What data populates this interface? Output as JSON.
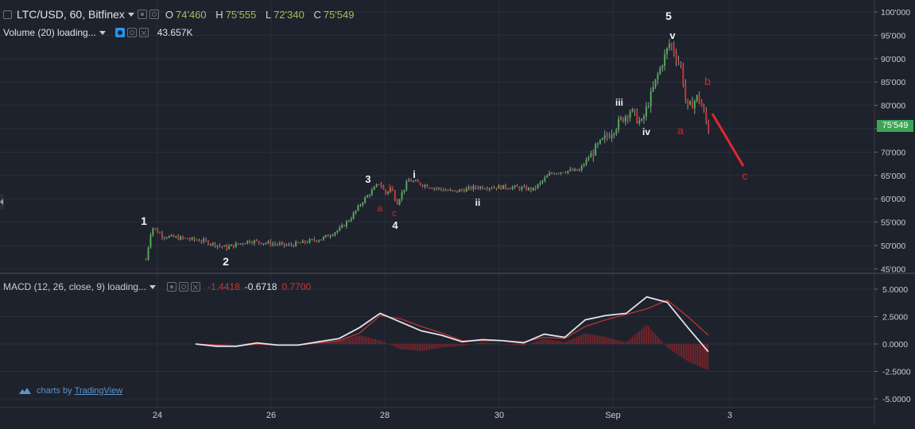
{
  "header": {
    "symbol": "LTC/USD, 60, Bitfinex",
    "ohlc": {
      "o_label": "O",
      "o_value": "74'460",
      "h_label": "H",
      "h_value": "75'555",
      "l_label": "L",
      "l_value": "72'340",
      "c_label": "C",
      "c_value": "75'549"
    }
  },
  "volume": {
    "label": "Volume (20) loading...",
    "value": "43.657K"
  },
  "macd": {
    "label": "MACD (12, 26, close, 9) loading...",
    "histogram": "-1.4418",
    "macd": "-0.6718",
    "signal": "0.7700"
  },
  "branding": {
    "prefix": "charts by",
    "name": "TradingView"
  },
  "price_label": "75'549",
  "colors": {
    "up": "#4caf50",
    "down": "#c8362f",
    "macd_line": "#e0e3eb",
    "signal_line": "#c8362f",
    "price_box": "#3aa655",
    "background": "#1e222d"
  },
  "chart_data": [
    {
      "type": "candlestick",
      "y_axis_ticks": [
        "100'000",
        "95'000",
        "90'000",
        "85'000",
        "80'000",
        "75'000",
        "70'000",
        "65'000",
        "60'000",
        "55'000",
        "50'000",
        "45'000"
      ],
      "ylim": [
        45000,
        100000
      ],
      "x_axis_ticks": [
        "24",
        "26",
        "28",
        "30",
        "Sep",
        "3"
      ],
      "price_path": [
        [
          "23.8",
          47000
        ],
        [
          "23.9",
          54000
        ],
        [
          "24.1",
          52000
        ],
        [
          "24.8",
          51000
        ],
        [
          "25.2",
          49500
        ],
        [
          "25.6",
          51000
        ],
        [
          "26.3",
          50000
        ],
        [
          "26.9",
          51500
        ],
        [
          "27.2",
          53500
        ],
        [
          "27.4",
          56000
        ],
        [
          "27.6",
          59500
        ],
        [
          "27.9",
          63500
        ],
        [
          "28.0",
          61000
        ],
        [
          "28.1",
          62500
        ],
        [
          "28.2",
          59000
        ],
        [
          "28.4",
          64000
        ],
        [
          "28.8",
          62500
        ],
        [
          "29.2",
          61500
        ],
        [
          "29.6",
          62500
        ],
        [
          "30.2",
          62500
        ],
        [
          "30.6",
          62000
        ],
        [
          "30.9",
          65500
        ],
        [
          "31.2",
          66000
        ],
        [
          "31.4",
          66000
        ],
        [
          "31.6",
          69500
        ],
        [
          "31.9",
          73500
        ],
        [
          "1.3",
          79000
        ],
        [
          "1.5",
          76000
        ],
        [
          "1.8",
          87000
        ],
        [
          "2.0",
          93500
        ],
        [
          "2.2",
          88000
        ],
        [
          "2.3",
          79000
        ],
        [
          "2.5",
          82000
        ],
        [
          "2.7",
          74000
        ]
      ],
      "wave_labels": [
        {
          "text": "1",
          "color": "white"
        },
        {
          "text": "2",
          "color": "white"
        },
        {
          "text": "3",
          "color": "white"
        },
        {
          "text": "a",
          "color": "red"
        },
        {
          "text": "b",
          "color": "red"
        },
        {
          "text": "c",
          "color": "red"
        },
        {
          "text": "4",
          "color": "white"
        },
        {
          "text": "i",
          "color": "white"
        },
        {
          "text": "ii",
          "color": "white"
        },
        {
          "text": "iii",
          "color": "white"
        },
        {
          "text": "iv",
          "color": "white"
        },
        {
          "text": "5",
          "color": "white"
        },
        {
          "text": "v",
          "color": "white"
        },
        {
          "text": "a",
          "color": "red"
        },
        {
          "text": "b",
          "color": "red"
        },
        {
          "text": "c",
          "color": "red"
        }
      ]
    },
    {
      "type": "line",
      "y_axis_ticks": [
        "5.0000",
        "2.5000",
        "0.0000",
        "-2.5000",
        "-5.0000"
      ],
      "ylim": [
        -5,
        5
      ],
      "series": [
        {
          "name": "MACD",
          "values": [
            0.0,
            -0.2,
            -0.2,
            0.1,
            -0.1,
            -0.1,
            0.2,
            0.5,
            1.5,
            2.8,
            2.0,
            1.2,
            0.8,
            0.2,
            0.4,
            0.3,
            0.1,
            0.9,
            0.6,
            2.2,
            2.6,
            2.8,
            4.3,
            3.8,
            1.5,
            -0.7
          ]
        },
        {
          "name": "Signal",
          "values": [
            0.0,
            -0.1,
            -0.2,
            0.0,
            -0.1,
            -0.1,
            0.1,
            0.3,
            1.0,
            2.6,
            2.3,
            1.6,
            1.0,
            0.3,
            0.3,
            0.3,
            0.2,
            0.6,
            0.5,
            1.6,
            2.2,
            2.7,
            3.2,
            4.0,
            2.5,
            0.8
          ]
        }
      ]
    }
  ]
}
